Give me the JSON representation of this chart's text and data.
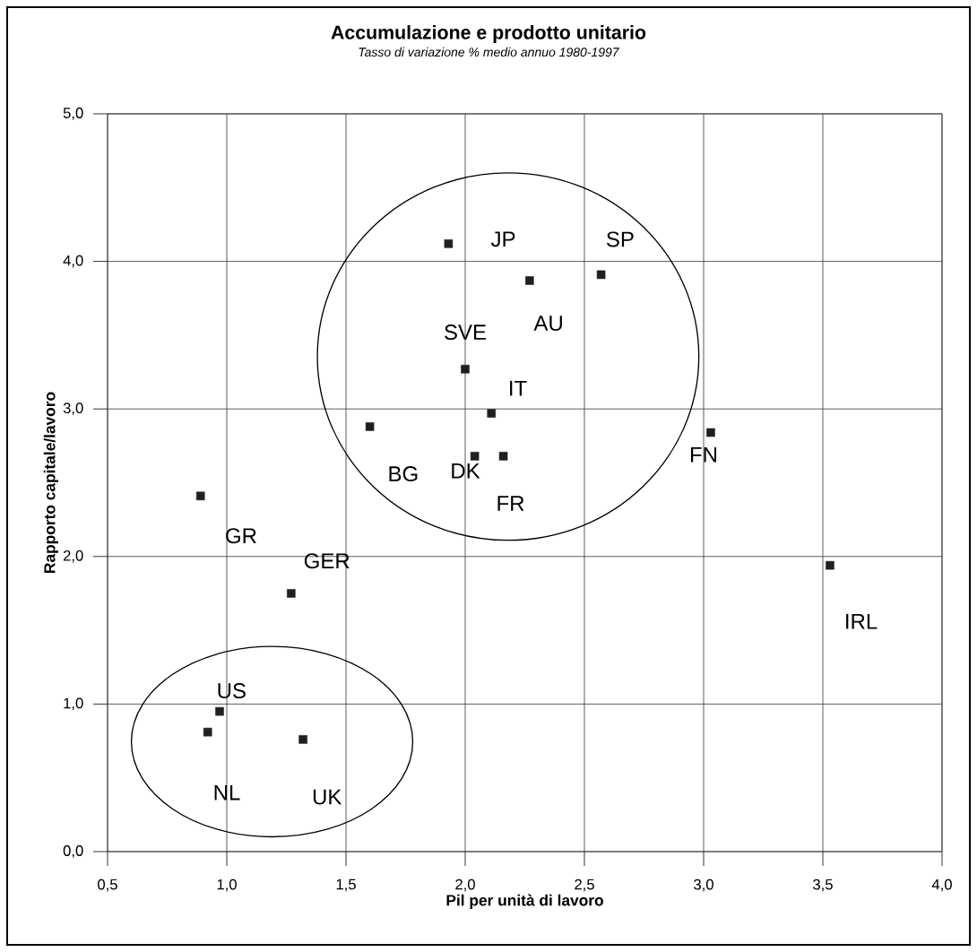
{
  "chart_data": {
    "type": "scatter",
    "title": "Accumulazione e prodotto unitario",
    "subtitle": "Tasso di variazione % medio annuo 1980-1997",
    "xlabel": "Pil per unità di lavoro",
    "ylabel": "Rapporto capitale/lavoro",
    "x": [
      1.93,
      2.27,
      2.57,
      2.0,
      2.11,
      1.6,
      2.04,
      2.16,
      3.03,
      0.89,
      1.27,
      0.97,
      0.92,
      1.32,
      3.53
    ],
    "values": [
      4.12,
      3.87,
      3.91,
      3.27,
      2.97,
      2.88,
      2.68,
      2.68,
      2.84,
      2.41,
      1.75,
      0.95,
      0.81,
      0.76,
      1.94
    ],
    "color": "#231f20",
    "marker": "square",
    "grid": true,
    "xlim": [
      0.5,
      4.0
    ],
    "ylim": [
      0,
      5
    ],
    "xticks": [
      {
        "value": 0.5,
        "label": "0,5"
      },
      {
        "value": 1.0,
        "label": "1,0"
      },
      {
        "value": 1.5,
        "label": "1,5"
      },
      {
        "value": 2.0,
        "label": "2,0"
      },
      {
        "value": 2.5,
        "label": "2,5"
      },
      {
        "value": 3.0,
        "label": "3,0"
      },
      {
        "value": 3.5,
        "label": "3,5"
      },
      {
        "value": 4.0,
        "label": "4,0"
      }
    ],
    "yticks": [
      {
        "value": 0,
        "label": "0,0"
      },
      {
        "value": 1,
        "label": "1,0"
      },
      {
        "value": 2,
        "label": "2,0"
      },
      {
        "value": 3,
        "label": "3,0"
      },
      {
        "value": 4,
        "label": "4,0"
      },
      {
        "value": 5,
        "label": "5,0"
      }
    ],
    "annotations": [
      {
        "text": "JP",
        "x": 1.93,
        "y": 4.12
      },
      {
        "text": "AU",
        "x": 2.27,
        "y": 3.87
      },
      {
        "text": "SP",
        "x": 2.57,
        "y": 3.91
      },
      {
        "text": "SVE",
        "x": 2.0,
        "y": 3.27
      },
      {
        "text": "IT",
        "x": 2.11,
        "y": 2.97
      },
      {
        "text": "BG",
        "x": 1.6,
        "y": 2.88
      },
      {
        "text": "DK",
        "x": 2.04,
        "y": 2.68
      },
      {
        "text": "FR",
        "x": 2.16,
        "y": 2.68
      },
      {
        "text": "FN",
        "x": 3.03,
        "y": 2.84
      },
      {
        "text": "GR",
        "x": 0.89,
        "y": 2.41
      },
      {
        "text": "GER",
        "x": 1.27,
        "y": 1.75
      },
      {
        "text": "US",
        "x": 0.97,
        "y": 0.95
      },
      {
        "text": "NL",
        "x": 0.92,
        "y": 0.81
      },
      {
        "text": "UK",
        "x": 1.32,
        "y": 0.76
      },
      {
        "text": "IRL",
        "x": 3.53,
        "y": 1.94
      }
    ]
  }
}
